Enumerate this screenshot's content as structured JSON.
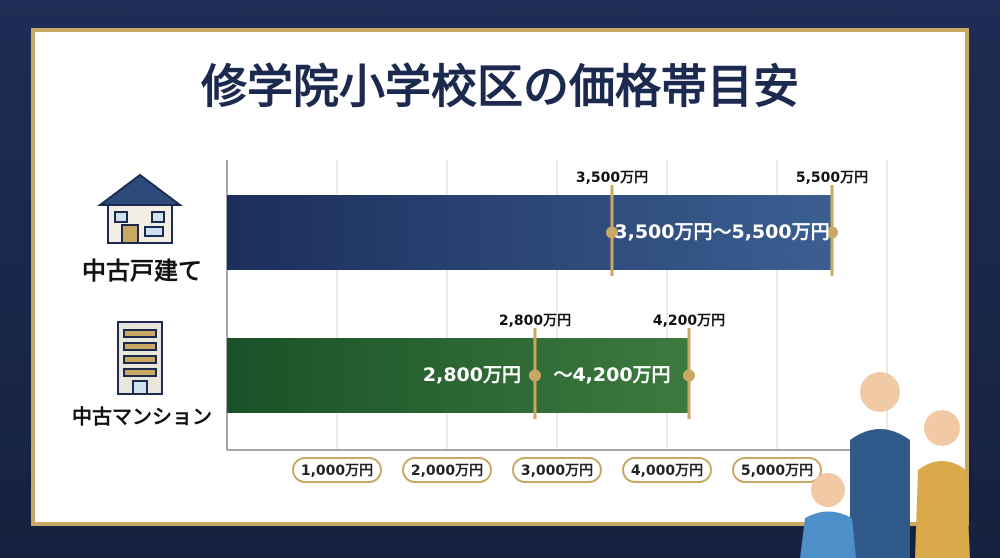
{
  "chart_data": {
    "type": "range-bar",
    "title": "修学院小学校区の価格帯目安",
    "categories": [
      "中古戸建て",
      "中古マンション"
    ],
    "low": [
      3500,
      2800
    ],
    "low_labels": [
      "3,500万円",
      "2,800万円"
    ],
    "high": [
      5500,
      4200
    ],
    "high_labels": [
      "5,500万円",
      "4,200万円"
    ],
    "range_labels": [
      [
        "3,500万円〜5,500万円"
      ],
      [
        "2,800万円",
        "〜4,200万円"
      ]
    ],
    "colors": [
      [
        "#1c2e5c",
        "#3b5f92"
      ],
      [
        "#1a5128",
        "#3d7a3e"
      ]
    ],
    "xlim": [
      0,
      6000
    ],
    "xticks": [
      {
        "value": 1000,
        "label": "1,000万円"
      },
      {
        "value": 2000,
        "label": "2,000万円"
      },
      {
        "value": 3000,
        "label": "3,000万円"
      },
      {
        "value": 4000,
        "label": "4,000万円"
      },
      {
        "value": 5000,
        "label": "5,000万円"
      }
    ],
    "grid": true
  }
}
